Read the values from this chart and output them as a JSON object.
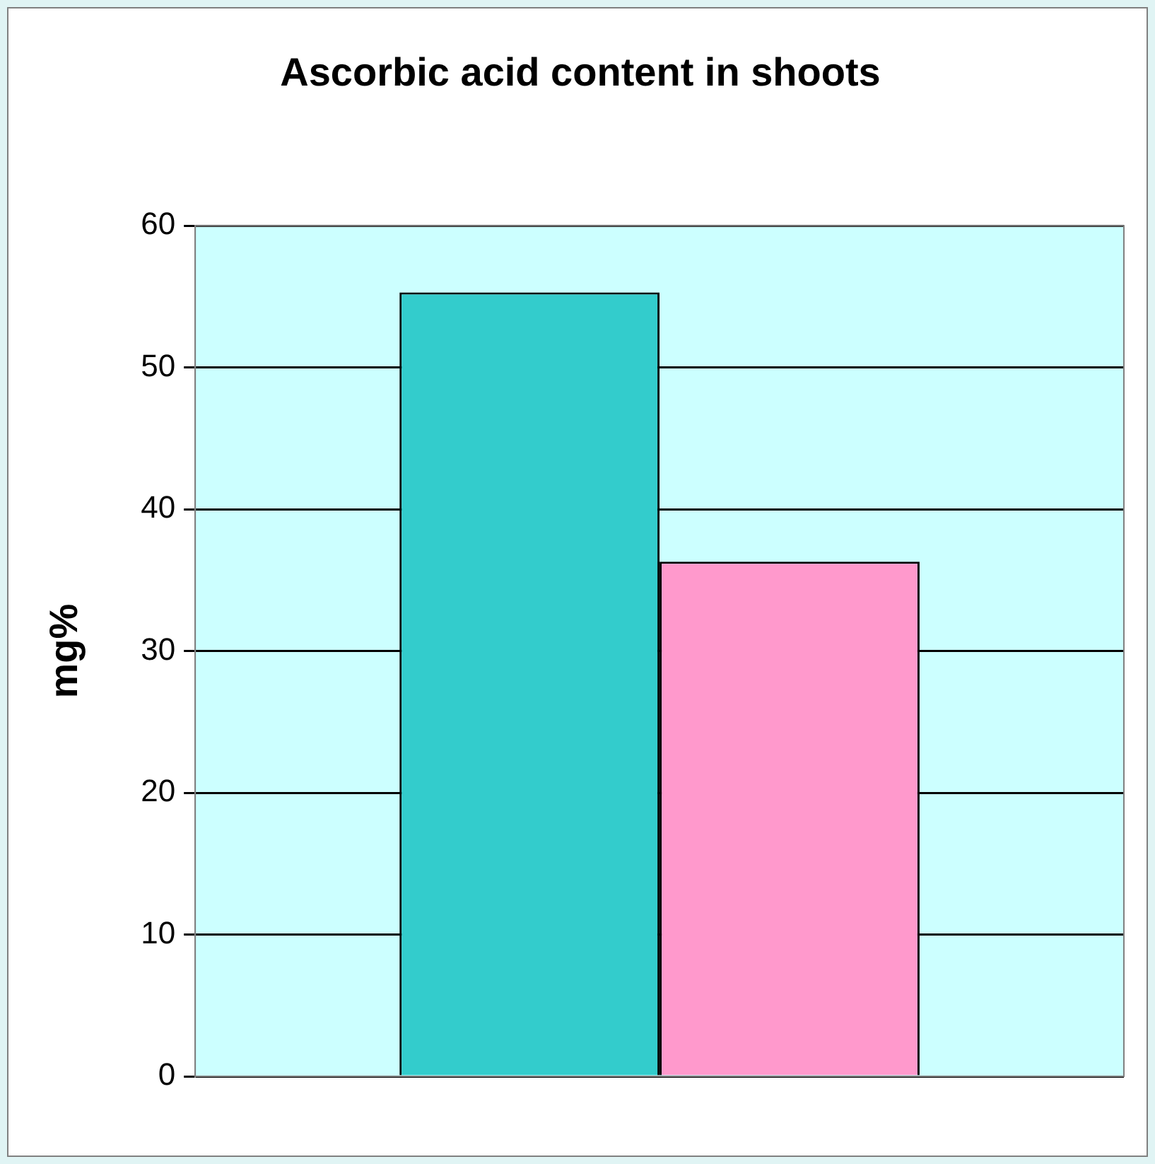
{
  "chart_data": {
    "type": "bar",
    "title": "Ascorbic acid content in shoots",
    "ylabel": "mg%",
    "categories": [
      null
    ],
    "series": [
      {
        "color": "#33cccc",
        "values": [
          55.3
        ]
      },
      {
        "color": "#ff99cc",
        "values": [
          36.3
        ]
      }
    ],
    "ylim": [
      0,
      60
    ],
    "yticks": [
      0,
      10,
      20,
      30,
      40,
      50,
      60
    ],
    "grid": "y",
    "legend": false,
    "tick_labels": "y"
  }
}
